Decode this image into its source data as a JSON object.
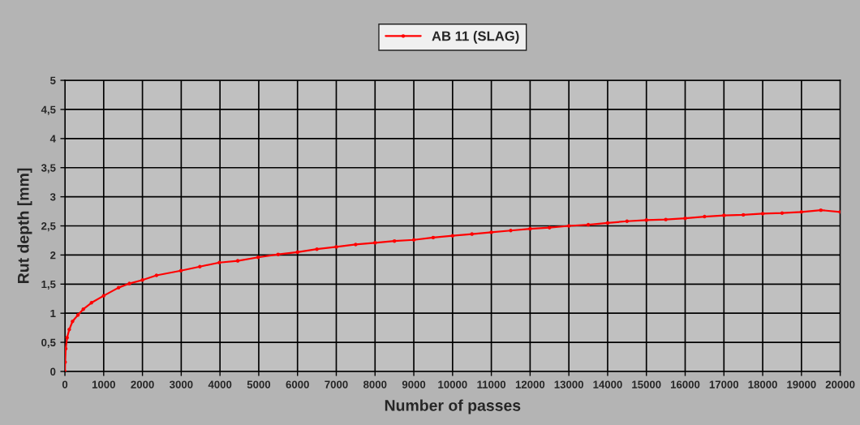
{
  "chart_data": {
    "type": "line",
    "xlabel": "Number of passes",
    "ylabel": "Rut depth [mm]",
    "x": [
      0,
      5,
      20,
      56,
      112,
      196,
      335,
      475,
      685,
      1000,
      1384,
      1663,
      2000,
      2362,
      2990,
      3480,
      3983,
      4458,
      4982,
      5500,
      6000,
      6500,
      7000,
      7500,
      8000,
      8500,
      9000,
      9500,
      10000,
      10500,
      11000,
      11500,
      12000,
      12500,
      13000,
      13500,
      14000,
      14500,
      15000,
      15500,
      16000,
      16500,
      17000,
      17500,
      18000,
      18500,
      19000,
      19500,
      20000
    ],
    "series": [
      {
        "name": "AB 11 (SLAG)",
        "color": "#ff0000",
        "values": [
          0,
          0.16,
          0.39,
          0.58,
          0.72,
          0.86,
          0.97,
          1.07,
          1.18,
          1.3,
          1.44,
          1.51,
          1.57,
          1.65,
          1.73,
          1.8,
          1.87,
          1.9,
          1.96,
          2.01,
          2.05,
          2.1,
          2.14,
          2.18,
          2.21,
          2.24,
          2.26,
          2.3,
          2.33,
          2.36,
          2.39,
          2.42,
          2.45,
          2.47,
          2.5,
          2.52,
          2.55,
          2.58,
          2.6,
          2.61,
          2.63,
          2.66,
          2.68,
          2.69,
          2.71,
          2.72,
          2.74,
          2.77,
          2.74
        ]
      }
    ],
    "xlim": [
      0,
      20000
    ],
    "xticks": [
      0,
      1000,
      2000,
      3000,
      4000,
      5000,
      6000,
      7000,
      8000,
      9000,
      10000,
      11000,
      12000,
      13000,
      14000,
      15000,
      16000,
      17000,
      18000,
      19000,
      20000
    ],
    "ylim": [
      0,
      5
    ],
    "yticks": [
      0,
      {
        "value": 0.5,
        "label": "0,5"
      },
      1,
      {
        "value": 1.5,
        "label": "1,5"
      },
      2,
      {
        "value": 2.5,
        "label": "2,5"
      },
      3,
      {
        "value": 3.5,
        "label": "3,5"
      },
      4,
      {
        "value": 4.5,
        "label": "4,5"
      },
      5
    ],
    "grid": true,
    "legend": "top",
    "marker": "circle",
    "line_style": "solid"
  }
}
